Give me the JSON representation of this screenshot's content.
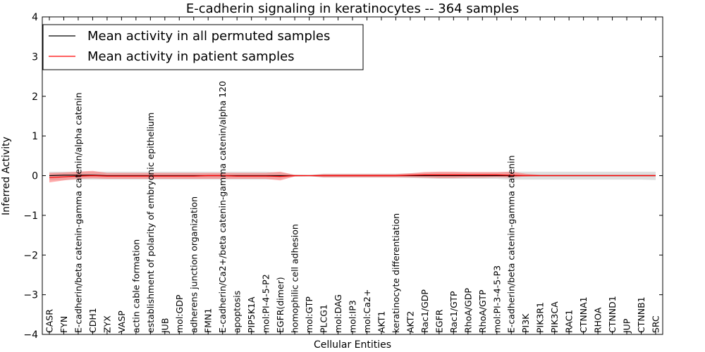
{
  "chart_data": {
    "type": "line",
    "title": "E-cadherin signaling in keratinocytes -- 364 samples",
    "xlabel": "Cellular Entities",
    "ylabel": "Inferred Activity",
    "ylim": [
      -4,
      4
    ],
    "yticks": [
      "4",
      "3",
      "2",
      "1",
      "0",
      "−1",
      "−2",
      "−3",
      "−4"
    ],
    "yticks_values": [
      4,
      3,
      2,
      1,
      0,
      -1,
      -2,
      -3,
      -4
    ],
    "legend_position": "top-left",
    "categories": [
      "CASR",
      "FYN",
      "E-cadherin/beta catenin-gamma catenin/alpha catenin",
      "CDH1",
      "ZYX",
      "VASP",
      "actin cable formation",
      "establishment of polarity of embryonic epithelium",
      "JUB",
      "mol:GDP",
      "adherens junction organization",
      "FMN1",
      "E-cadherin/Ca2+/beta catenin-gamma catenin/alpha 120",
      "apoptosis",
      "PIP5K1A",
      "mol:PI-4-5-P2",
      "EGFR(dimer)",
      "homophilic cell adhesion",
      "mol:GTP",
      "PLCG1",
      "mol:DAG",
      "mol:IP3",
      "mol:Ca2+",
      "AKT1",
      "keratinocyte differentiation",
      "AKT2",
      "Rac1/GDP",
      "EGFR",
      "Rac1/GTP",
      "RhoA/GDP",
      "RhoA/GTP",
      "mol:PI-3-4-5-P3",
      "E-cadherin/beta catenin-gamma catenin",
      "PI3K",
      "PIK3R1",
      "PIK3CA",
      "RAC1",
      "CTNNA1",
      "RHOA",
      "CTNND1",
      "JUP",
      "CTNNB1",
      "SRC"
    ],
    "series": [
      {
        "name": "Mean activity in all permuted samples",
        "color": "#000000",
        "values": [
          0.0,
          0.01,
          0.01,
          0.01,
          0.0,
          0.0,
          0.0,
          0.0,
          0.0,
          0.0,
          0.0,
          0.0,
          0.0,
          0.0,
          0.0,
          0.0,
          0.0,
          0.0,
          0.0,
          0.0,
          0.0,
          0.0,
          0.0,
          0.0,
          0.0,
          0.0,
          0.0,
          0.0,
          0.0,
          0.0,
          0.0,
          0.0,
          0.0,
          0.0,
          0.0,
          0.0,
          0.0,
          0.0,
          0.0,
          0.0,
          0.0,
          0.0,
          0.0
        ],
        "band_lower": [
          -0.12,
          -0.11,
          -0.1,
          -0.1,
          -0.1,
          -0.1,
          -0.1,
          -0.1,
          -0.1,
          -0.1,
          -0.1,
          -0.1,
          -0.1,
          -0.1,
          -0.1,
          -0.1,
          -0.08,
          -0.02,
          -0.01,
          -0.05,
          -0.05,
          -0.05,
          -0.05,
          -0.05,
          -0.05,
          -0.06,
          -0.07,
          -0.08,
          -0.08,
          -0.08,
          -0.08,
          -0.08,
          -0.1,
          -0.1,
          -0.1,
          -0.1,
          -0.1,
          -0.1,
          -0.1,
          -0.1,
          -0.1,
          -0.1,
          -0.11
        ],
        "band_upper": [
          0.1,
          0.1,
          0.1,
          0.1,
          0.1,
          0.1,
          0.1,
          0.1,
          0.1,
          0.1,
          0.1,
          0.1,
          0.1,
          0.1,
          0.1,
          0.1,
          0.08,
          0.02,
          0.01,
          0.05,
          0.05,
          0.05,
          0.05,
          0.05,
          0.05,
          0.06,
          0.07,
          0.08,
          0.08,
          0.08,
          0.08,
          0.08,
          0.1,
          0.1,
          0.1,
          0.1,
          0.1,
          0.1,
          0.1,
          0.1,
          0.1,
          0.1,
          0.1
        ]
      },
      {
        "name": "Mean activity in patient samples",
        "color": "#ff0000",
        "values": [
          -0.05,
          -0.03,
          -0.01,
          0.0,
          -0.01,
          -0.01,
          -0.01,
          -0.01,
          -0.01,
          -0.01,
          -0.01,
          0.0,
          0.0,
          -0.01,
          -0.01,
          -0.01,
          -0.02,
          0.0,
          0.0,
          0.0,
          0.0,
          0.0,
          0.0,
          0.0,
          0.0,
          0.01,
          0.02,
          0.02,
          0.02,
          0.02,
          0.02,
          0.02,
          0.01,
          0.0,
          0.0,
          0.0,
          0.0,
          0.0,
          0.0,
          0.0,
          0.0,
          0.0,
          0.0
        ],
        "band_lower": [
          -0.17,
          -0.12,
          -0.08,
          -0.07,
          -0.08,
          -0.08,
          -0.08,
          -0.08,
          -0.08,
          -0.08,
          -0.08,
          -0.08,
          -0.08,
          -0.08,
          -0.08,
          -0.08,
          -0.12,
          -0.02,
          -0.01,
          -0.04,
          -0.04,
          -0.04,
          -0.04,
          -0.04,
          -0.04,
          -0.04,
          -0.05,
          -0.06,
          -0.06,
          -0.05,
          -0.05,
          -0.04,
          -0.05,
          -0.02,
          -0.01,
          -0.01,
          -0.01,
          -0.01,
          -0.01,
          -0.01,
          -0.01,
          -0.01,
          -0.01
        ],
        "band_upper": [
          0.07,
          0.08,
          0.1,
          0.12,
          0.07,
          0.07,
          0.07,
          0.07,
          0.07,
          0.07,
          0.07,
          0.07,
          0.07,
          0.07,
          0.07,
          0.07,
          0.1,
          0.02,
          0.01,
          0.04,
          0.04,
          0.04,
          0.04,
          0.04,
          0.04,
          0.06,
          0.09,
          0.1,
          0.1,
          0.09,
          0.09,
          0.09,
          0.1,
          0.05,
          0.02,
          0.02,
          0.02,
          0.02,
          0.02,
          0.02,
          0.02,
          0.02,
          0.02
        ]
      }
    ]
  }
}
